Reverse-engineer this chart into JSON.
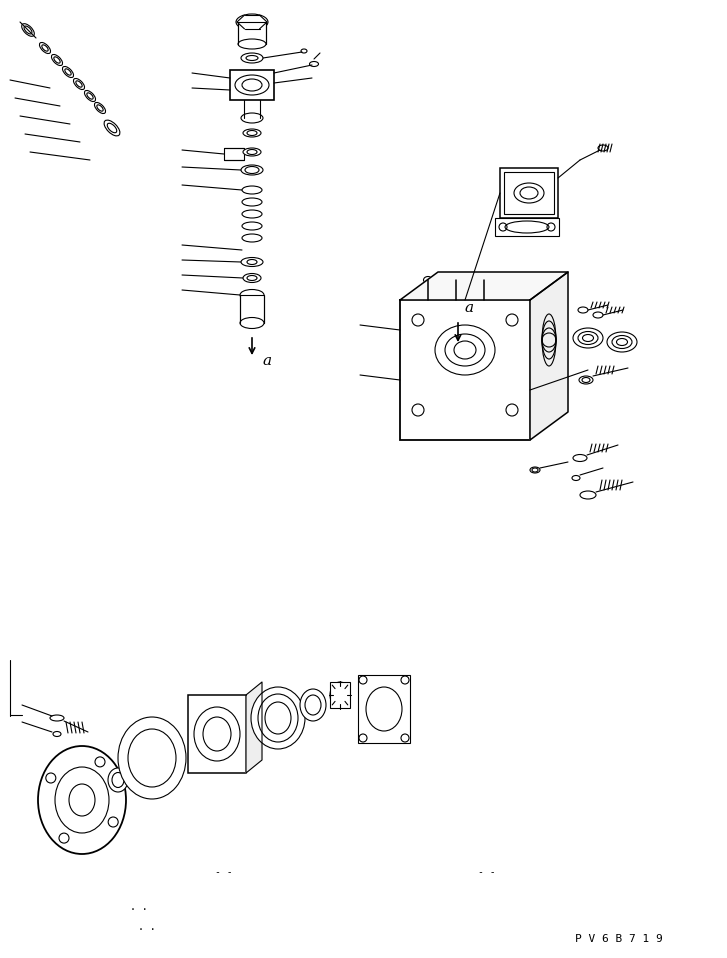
{
  "bg_color": "#ffffff",
  "line_color": "#000000",
  "fig_width": 7.27,
  "fig_height": 9.58,
  "dpi": 100,
  "watermark": "P V 6 B 7 1 9",
  "label_a1": "a",
  "label_a2": "a"
}
